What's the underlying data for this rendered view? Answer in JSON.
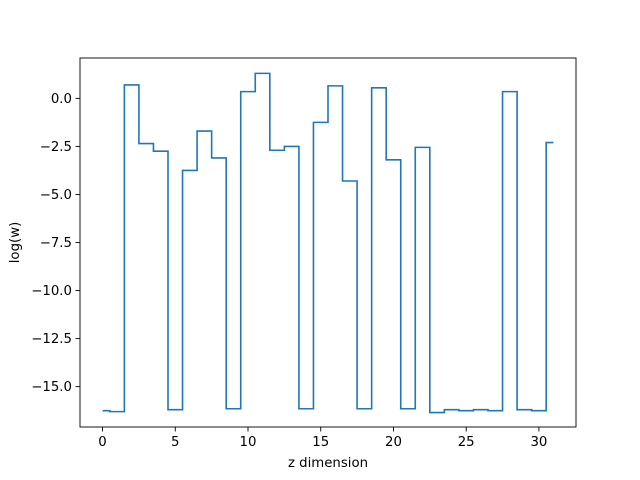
{
  "chart_data": {
    "type": "line",
    "drawstyle": "steps-mid",
    "title": "",
    "xlabel": "z dimension",
    "ylabel": "log(w)",
    "xlim": [
      -1.55,
      32.55
    ],
    "ylim": [
      -17.1,
      2.1
    ],
    "xticks": [
      0,
      5,
      10,
      15,
      20,
      25,
      30
    ],
    "xtick_labels": [
      "0",
      "5",
      "10",
      "15",
      "20",
      "25",
      "30"
    ],
    "yticks": [
      0.0,
      -2.5,
      -5.0,
      -7.5,
      -10.0,
      -12.5,
      -15.0
    ],
    "ytick_labels": [
      "0.0",
      "−2.5",
      "−5.0",
      "−7.5",
      "−10.0",
      "−12.5",
      "−15.0"
    ],
    "grid": false,
    "legend": "none",
    "series": [
      {
        "color": "#1f77b4",
        "x": [
          0,
          1,
          2,
          3,
          4,
          5,
          6,
          7,
          8,
          9,
          10,
          11,
          12,
          13,
          14,
          15,
          16,
          17,
          18,
          19,
          20,
          21,
          22,
          23,
          24,
          25,
          26,
          27,
          28,
          29,
          30,
          31
        ],
        "y": [
          -16.25,
          -16.3,
          0.7,
          -2.35,
          -2.75,
          -16.2,
          -3.75,
          -1.7,
          -3.1,
          -16.15,
          0.35,
          1.3,
          -2.7,
          -2.5,
          -16.15,
          -1.25,
          0.65,
          -4.3,
          -16.15,
          0.55,
          -3.2,
          -16.15,
          -2.55,
          -16.35,
          -16.2,
          -16.25,
          -16.2,
          -16.25,
          0.35,
          -16.2,
          -16.25,
          -2.3
        ]
      }
    ]
  }
}
